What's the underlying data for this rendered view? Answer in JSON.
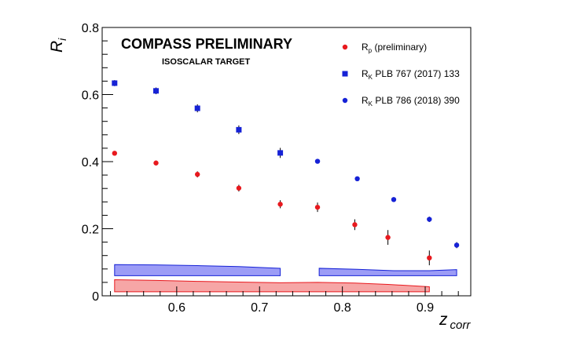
{
  "chart_data": {
    "type": "scatter",
    "title": "COMPASS PRELIMINARY",
    "subtitle": "ISOSCALAR TARGET",
    "xlabel": {
      "main": "z",
      "sub": "corr"
    },
    "ylabel": {
      "main": "R",
      "sub": "i"
    },
    "xlim": [
      0.51,
      0.955
    ],
    "ylim": [
      0,
      0.8
    ],
    "xticks": [
      {
        "value": 0.6,
        "label": "0.6"
      },
      {
        "value": 0.7,
        "label": "0.7"
      },
      {
        "value": 0.8,
        "label": "0.8"
      },
      {
        "value": 0.9,
        "label": "0.9"
      }
    ],
    "yticks": [
      {
        "value": 0,
        "label": "0"
      },
      {
        "value": 0.2,
        "label": "0.2"
      },
      {
        "value": 0.4,
        "label": "0.4"
      },
      {
        "value": 0.6,
        "label": "0.6"
      },
      {
        "value": 0.8,
        "label": "0.8"
      }
    ],
    "grid": false,
    "legend_position": "top-right",
    "series": [
      {
        "legend": {
          "main": "R",
          "sub": "p",
          "rest": " (preliminary)"
        },
        "marker": "circle",
        "color": "#e8191e",
        "x": [
          0.525,
          0.575,
          0.625,
          0.675,
          0.725,
          0.77,
          0.815,
          0.855,
          0.905
        ],
        "y": [
          0.425,
          0.396,
          0.362,
          0.321,
          0.273,
          0.264,
          0.212,
          0.174,
          0.113
        ],
        "err": [
          0.006,
          0.007,
          0.009,
          0.01,
          0.012,
          0.014,
          0.016,
          0.022,
          0.022
        ]
      },
      {
        "legend": {
          "main": "R",
          "sub": "K",
          "rest": " PLB 767 (2017) 133"
        },
        "marker": "square",
        "color": "#1622d6",
        "x": [
          0.525,
          0.575,
          0.625,
          0.675,
          0.725
        ],
        "y": [
          0.634,
          0.611,
          0.559,
          0.495,
          0.426
        ],
        "err": [
          0.009,
          0.01,
          0.012,
          0.013,
          0.015
        ]
      },
      {
        "legend": {
          "main": "R",
          "sub": "K",
          "rest": " PLB 786 (2018) 390"
        },
        "marker": "circle",
        "color": "#1622d6",
        "x": [
          0.77,
          0.818,
          0.862,
          0.905,
          0.938
        ],
        "y": [
          0.401,
          0.349,
          0.287,
          0.228,
          0.151
        ],
        "err": [
          0.005,
          0.006,
          0.007,
          0.008,
          0.009
        ]
      }
    ],
    "systematic_bands": [
      {
        "fill": "#9c9cf6",
        "stroke": "#1622d6",
        "x": [
          0.525,
          0.575,
          0.625,
          0.675,
          0.725
        ],
        "y": [
          0.093,
          0.092,
          0.09,
          0.087,
          0.082
        ]
      },
      {
        "fill": "#9c9cf6",
        "stroke": "#1622d6",
        "x": [
          0.772,
          0.818,
          0.862,
          0.905,
          0.938
        ],
        "y": [
          0.082,
          0.079,
          0.075,
          0.075,
          0.078
        ]
      },
      {
        "fill": "#f6a6a6",
        "stroke": "#e8191e",
        "x": [
          0.525,
          0.575,
          0.625,
          0.675,
          0.725,
          0.77,
          0.815,
          0.855,
          0.905
        ],
        "y": [
          0.048,
          0.046,
          0.043,
          0.041,
          0.039,
          0.04,
          0.038,
          0.034,
          0.027
        ]
      }
    ]
  }
}
